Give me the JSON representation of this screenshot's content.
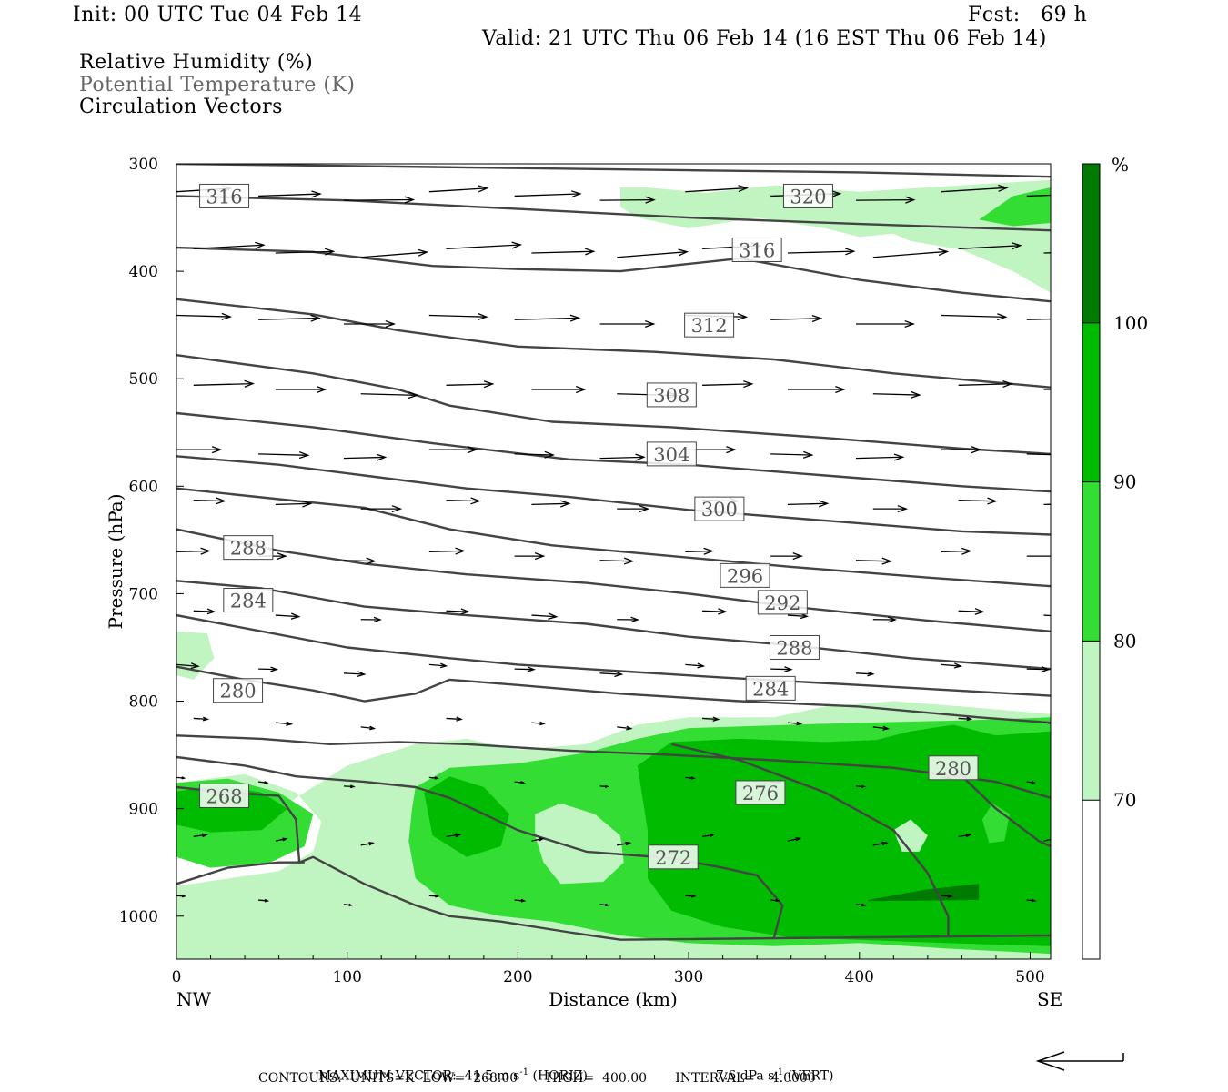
{
  "header": {
    "init": "Init: 00 UTC Tue 04 Feb 14",
    "fcst": "Fcst:   69 h",
    "valid": "Valid: 21 UTC Thu 06 Feb 14 (16 EST Thu 06 Feb 14)",
    "fields": [
      "Relative Humidity (%)",
      "Potential Temperature (K)",
      "Circulation Vectors"
    ]
  },
  "colors": {
    "rh_70": "#c0f4c0",
    "rh_80": "#33dd33",
    "rh_90": "#00bb00",
    "rh_100": "#007a00",
    "theta": "#444444",
    "vector": "#000000"
  },
  "chart_data": {
    "type": "cross-section",
    "xlabel": "Distance (km)",
    "ylabel": "Pressure (hPa)",
    "xlim": [
      0,
      512
    ],
    "ylim": [
      1040,
      300
    ],
    "x_ticks": [
      "0",
      "100",
      "200",
      "300",
      "400",
      "500"
    ],
    "y_ticks": [
      "300",
      "400",
      "500",
      "600",
      "700",
      "800",
      "900",
      "1000"
    ],
    "endpoints": {
      "left": "NW",
      "right": "SE"
    },
    "colorbar": {
      "unit": "%",
      "levels": [
        "70",
        "80",
        "90",
        "100"
      ]
    },
    "theta_contour_labels": [
      {
        "value": "316",
        "x": 28,
        "p": 330
      },
      {
        "value": "320",
        "x": 370,
        "p": 330
      },
      {
        "value": "316",
        "x": 340,
        "p": 380
      },
      {
        "value": "312",
        "x": 312,
        "p": 450
      },
      {
        "value": "308",
        "x": 290,
        "p": 515
      },
      {
        "value": "304",
        "x": 290,
        "p": 570
      },
      {
        "value": "300",
        "x": 318,
        "p": 621
      },
      {
        "value": "296",
        "x": 333,
        "p": 683
      },
      {
        "value": "292",
        "x": 355,
        "p": 708
      },
      {
        "value": "288",
        "x": 42,
        "p": 657
      },
      {
        "value": "288",
        "x": 362,
        "p": 750
      },
      {
        "value": "284",
        "x": 42,
        "p": 706
      },
      {
        "value": "284",
        "x": 348,
        "p": 788
      },
      {
        "value": "280",
        "x": 36,
        "p": 790
      },
      {
        "value": "280",
        "x": 455,
        "p": 862
      },
      {
        "value": "276",
        "x": 342,
        "p": 885
      },
      {
        "value": "272",
        "x": 291,
        "p": 945
      },
      {
        "value": "268",
        "x": 28,
        "p": 888
      }
    ],
    "footer": {
      "max_vector_label": "MAXIMUM VECTOR:",
      "max_vector_horiz": "41.5 m s",
      "horiz_unit": "(HORIZ)",
      "max_vector_vert": "7.6 dPa s",
      "vert_unit": "(VERT)",
      "exp": "-1",
      "contours": "CONTOURS:  UNITS=K  LOW=  268.00       HIGH=  400.00       INTERVAL=    4.0000"
    }
  }
}
